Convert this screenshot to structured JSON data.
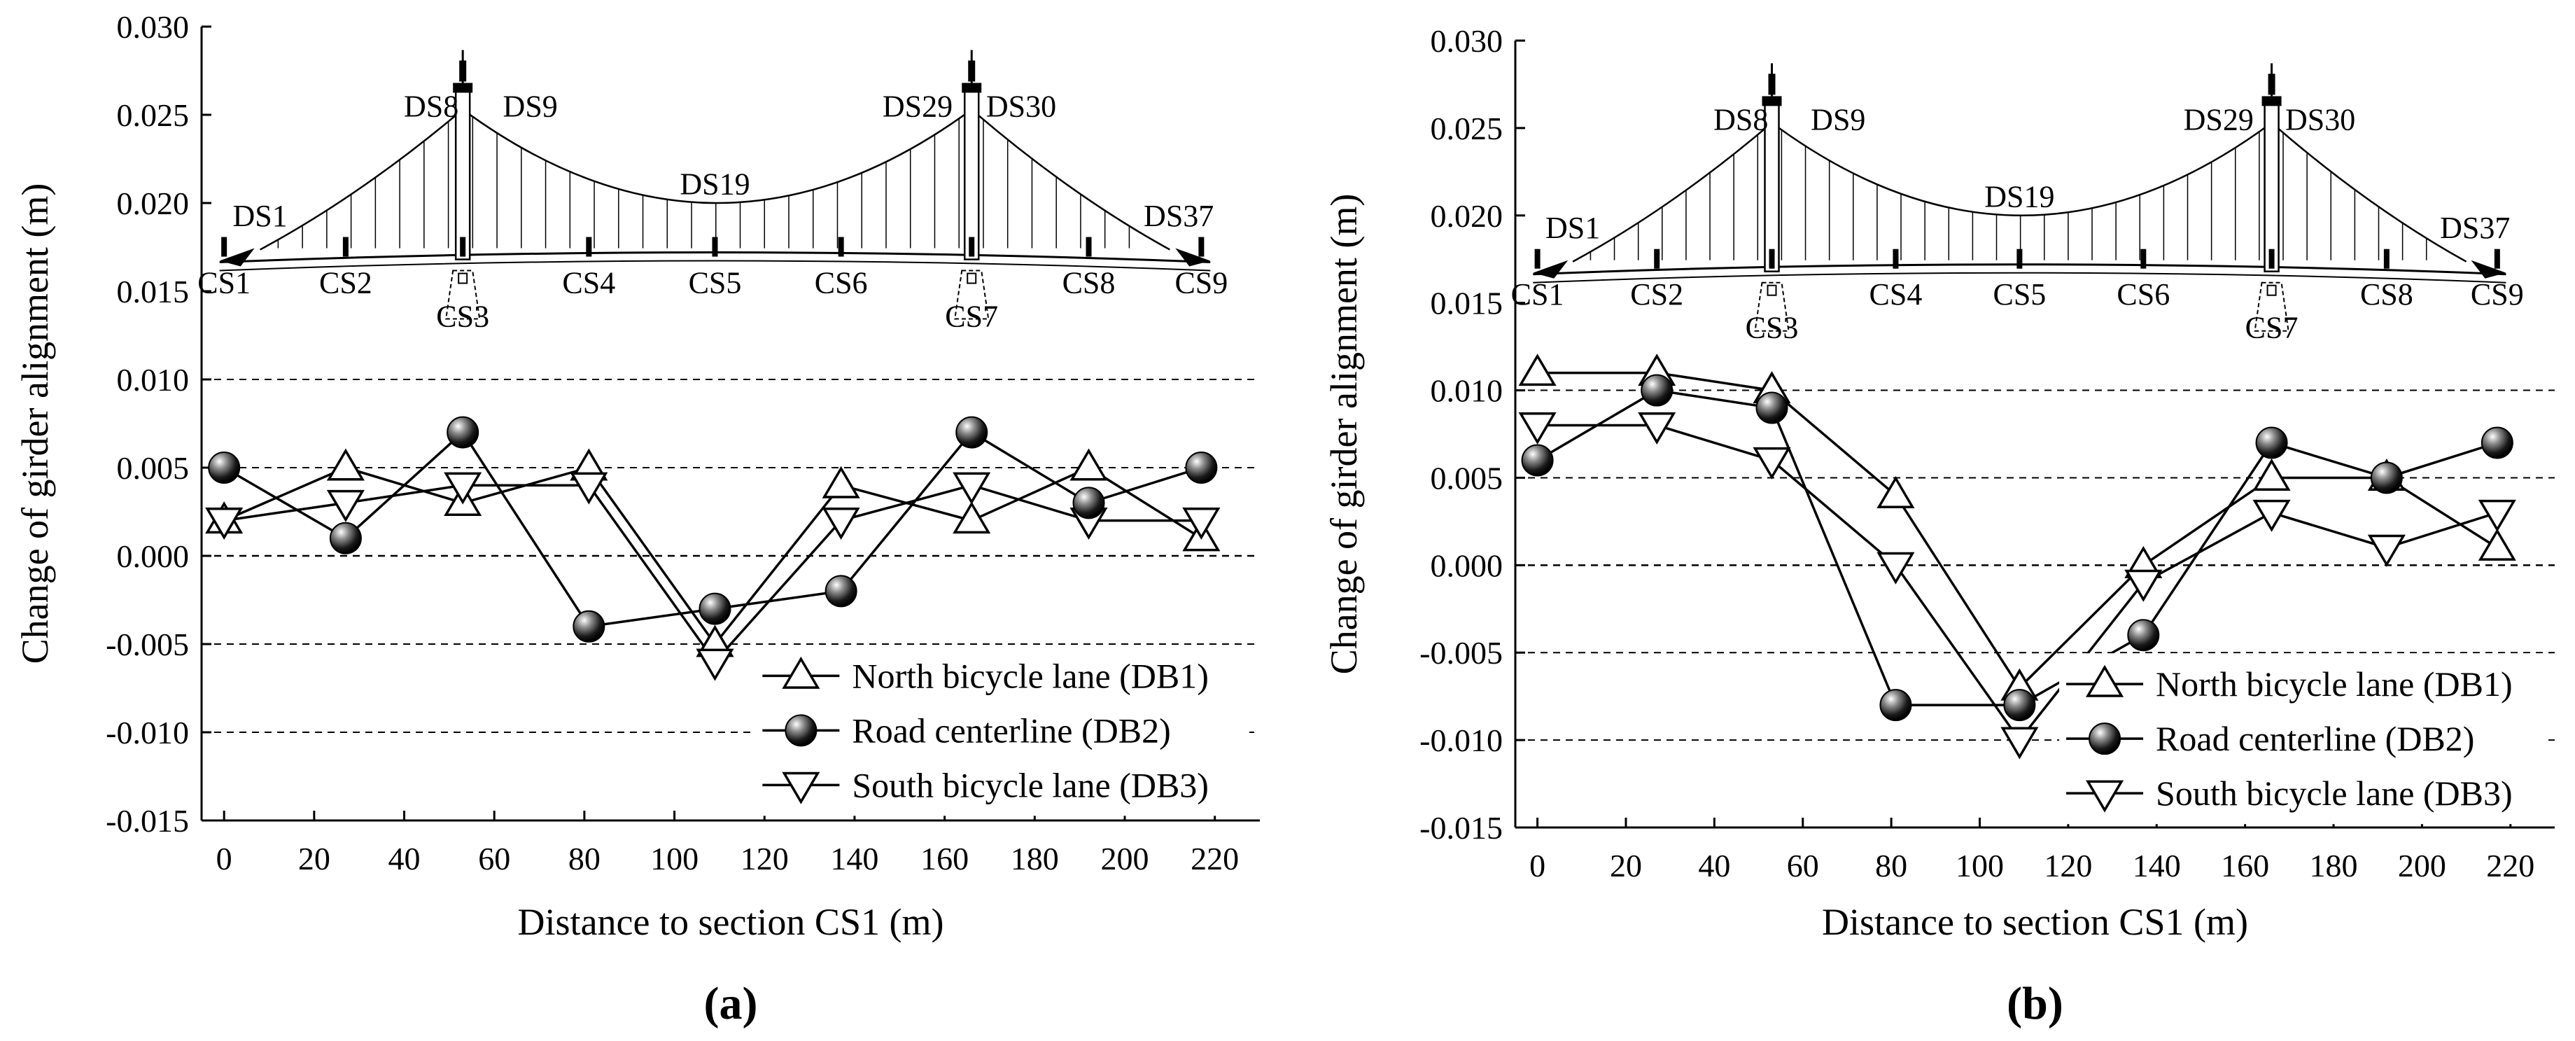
{
  "chart_data": [
    {
      "id": "a",
      "panel_label": "(a)",
      "type": "line",
      "xlabel": "Distance to section CS1 (m)",
      "ylabel": "Change of girder alignment (m)",
      "xlim": [
        -5,
        230
      ],
      "ylim": [
        -0.015,
        0.03
      ],
      "xticks": [
        0,
        20,
        40,
        60,
        80,
        100,
        120,
        140,
        160,
        180,
        200,
        220
      ],
      "yticks": [
        -0.015,
        -0.01,
        -0.005,
        0.0,
        0.005,
        0.01,
        0.015,
        0.02,
        0.025,
        0.03
      ],
      "ytick_labels": [
        "-0.015",
        "-0.010",
        "-0.005",
        "0.000",
        "0.005",
        "0.010",
        "0.015",
        "0.020",
        "0.025",
        "0.030"
      ],
      "gridlines_y": [
        -0.01,
        -0.005,
        0.0,
        0.005,
        0.01
      ],
      "legend_position": "bottom-right",
      "x": [
        0,
        27,
        53,
        81,
        109,
        137,
        166,
        192,
        217
      ],
      "series": [
        {
          "name": "North bicycle lane (DB1)",
          "marker": "triangle-up",
          "values": [
            0.002,
            0.005,
            0.003,
            0.005,
            -0.005,
            0.004,
            0.002,
            0.005,
            0.001
          ]
        },
        {
          "name": "Road centerline (DB2)",
          "marker": "sphere",
          "values": [
            0.005,
            0.001,
            0.007,
            -0.004,
            -0.003,
            -0.002,
            0.007,
            0.003,
            0.005
          ]
        },
        {
          "name": "South bicycle lane (DB3)",
          "marker": "triangle-down",
          "values": [
            0.002,
            0.003,
            0.004,
            0.004,
            -0.006,
            0.002,
            0.004,
            0.002,
            0.002
          ]
        }
      ],
      "diagram": {
        "top_labels": [
          {
            "text": "DS1",
            "x": 8
          },
          {
            "text": "DS8",
            "x": 46
          },
          {
            "text": "DS9",
            "x": 68
          },
          {
            "text": "DS19",
            "x": 109
          },
          {
            "text": "DS29",
            "x": 154
          },
          {
            "text": "DS30",
            "x": 177
          },
          {
            "text": "DS37",
            "x": 212
          }
        ],
        "section_labels": [
          {
            "text": "CS1",
            "x": 0
          },
          {
            "text": "CS2",
            "x": 27
          },
          {
            "text": "CS3",
            "x": 53
          },
          {
            "text": "CS4",
            "x": 81
          },
          {
            "text": "CS5",
            "x": 109
          },
          {
            "text": "CS6",
            "x": 137
          },
          {
            "text": "CS7",
            "x": 166
          },
          {
            "text": "CS8",
            "x": 192
          },
          {
            "text": "CS9",
            "x": 217
          }
        ],
        "section_label_y": [
          0.0153,
          0.0153,
          0.0134,
          0.0153,
          0.0153,
          0.0153,
          0.0134,
          0.0153,
          0.0153
        ],
        "ds_label_y": [
          0.0187,
          0.0249,
          0.0249,
          0.0205,
          0.0249,
          0.0249,
          0.0187
        ]
      }
    },
    {
      "id": "b",
      "panel_label": "(b)",
      "type": "line",
      "xlabel": "Distance to section CS1 (m)",
      "ylabel": "Change of girder alignment (m)",
      "xlim": [
        -5,
        230
      ],
      "ylim": [
        -0.015,
        0.03
      ],
      "xticks": [
        0,
        20,
        40,
        60,
        80,
        100,
        120,
        140,
        160,
        180,
        200,
        220
      ],
      "yticks": [
        -0.015,
        -0.01,
        -0.005,
        0.0,
        0.005,
        0.01,
        0.015,
        0.02,
        0.025,
        0.03
      ],
      "ytick_labels": [
        "-0.015",
        "-0.010",
        "-0.005",
        "0.000",
        "0.005",
        "0.010",
        "0.015",
        "0.020",
        "0.025",
        "0.030"
      ],
      "gridlines_y": [
        -0.01,
        -0.005,
        0.0,
        0.005,
        0.01
      ],
      "legend_position": "bottom-right",
      "x": [
        0,
        27,
        53,
        81,
        109,
        137,
        166,
        192,
        217
      ],
      "series": [
        {
          "name": "North bicycle lane (DB1)",
          "marker": "triangle-up",
          "values": [
            0.011,
            0.011,
            0.01,
            0.004,
            -0.007,
            0.0,
            0.005,
            0.005,
            0.001
          ]
        },
        {
          "name": "Road centerline (DB2)",
          "marker": "sphere",
          "values": [
            0.006,
            0.01,
            0.009,
            -0.008,
            -0.008,
            -0.004,
            0.007,
            0.005,
            0.007
          ]
        },
        {
          "name": "South bicycle lane (DB3)",
          "marker": "triangle-down",
          "values": [
            0.008,
            0.008,
            0.006,
            0.0,
            -0.01,
            -0.001,
            0.003,
            0.001,
            0.003
          ]
        }
      ],
      "diagram": {
        "top_labels": [
          {
            "text": "DS1",
            "x": 8
          },
          {
            "text": "DS8",
            "x": 46
          },
          {
            "text": "DS9",
            "x": 68
          },
          {
            "text": "DS19",
            "x": 109
          },
          {
            "text": "DS29",
            "x": 154
          },
          {
            "text": "DS30",
            "x": 177
          },
          {
            "text": "DS37",
            "x": 212
          }
        ],
        "section_labels": [
          {
            "text": "CS1",
            "x": 0
          },
          {
            "text": "CS2",
            "x": 27
          },
          {
            "text": "CS3",
            "x": 53
          },
          {
            "text": "CS4",
            "x": 81
          },
          {
            "text": "CS5",
            "x": 109
          },
          {
            "text": "CS6",
            "x": 137
          },
          {
            "text": "CS7",
            "x": 166
          },
          {
            "text": "CS8",
            "x": 192
          },
          {
            "text": "CS9",
            "x": 217
          }
        ],
        "section_label_y": [
          0.0153,
          0.0153,
          0.0134,
          0.0153,
          0.0153,
          0.0153,
          0.0134,
          0.0153,
          0.0153
        ],
        "ds_label_y": [
          0.0187,
          0.0249,
          0.0249,
          0.0205,
          0.0249,
          0.0249,
          0.0187
        ]
      }
    }
  ]
}
